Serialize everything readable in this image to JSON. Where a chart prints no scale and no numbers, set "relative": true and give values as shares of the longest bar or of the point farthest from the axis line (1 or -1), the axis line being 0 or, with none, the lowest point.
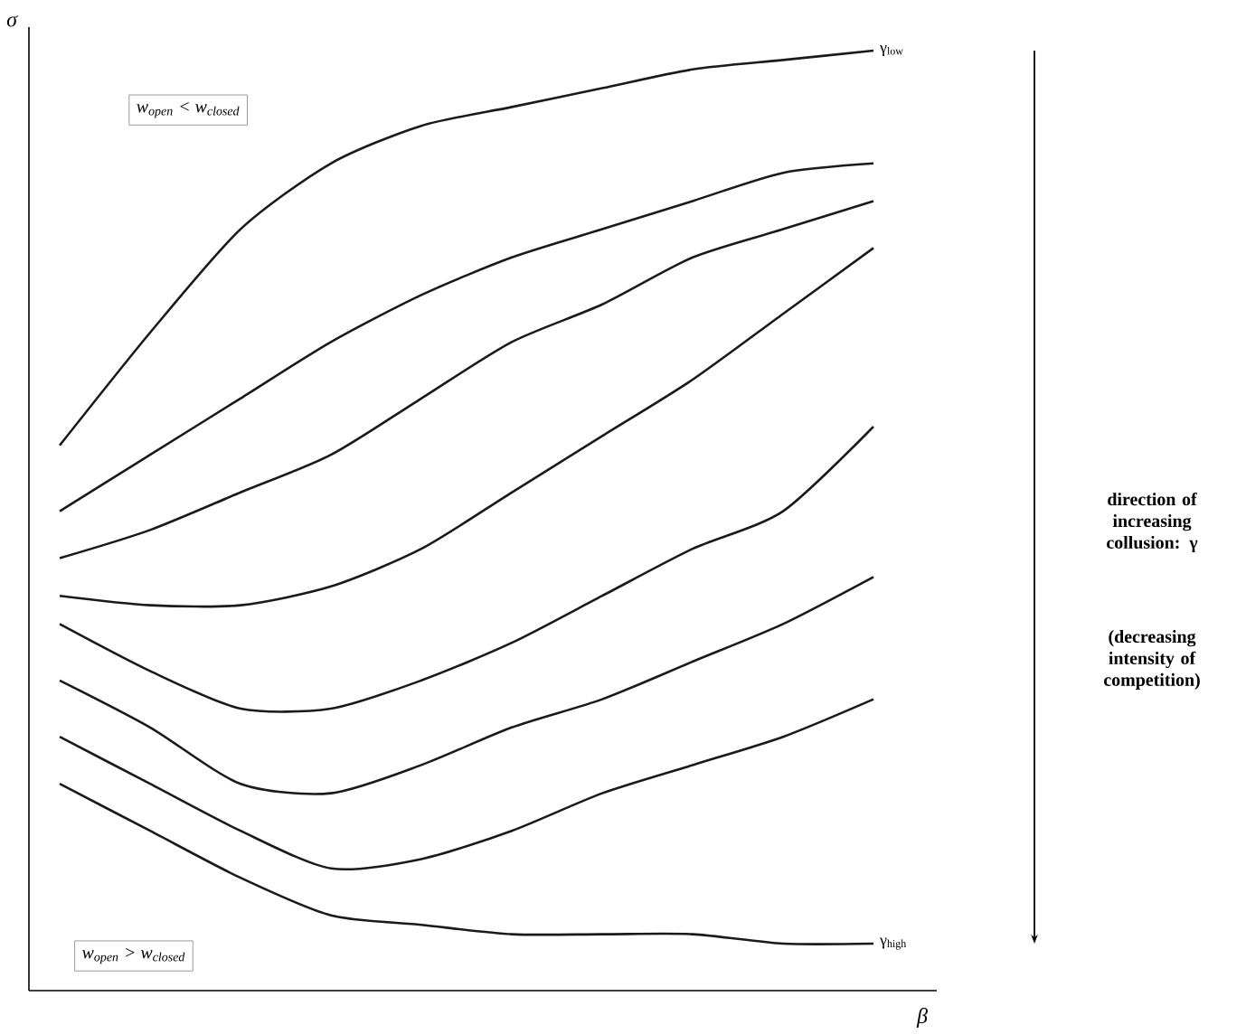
{
  "chart_data": {
    "type": "line",
    "relative": true,
    "xlabel": "β",
    "ylabel": "σ",
    "categories": [
      null,
      null,
      null,
      null,
      null,
      null,
      null,
      null,
      null,
      null
    ],
    "marker": "none",
    "line_style": "solid",
    "series": [
      {
        "name": "γ$_{low}$",
        "color": "#1a1a1a",
        "values": [
          0.58,
          0.7,
          0.81,
          0.88,
          0.92,
          0.94,
          0.96,
          0.98,
          0.99,
          1.0
        ]
      },
      {
        "color": "#1a1a1a",
        "values": [
          0.51,
          0.57,
          0.63,
          0.69,
          0.74,
          0.78,
          0.81,
          0.84,
          0.87,
          0.88
        ]
      },
      {
        "color": "#1a1a1a",
        "values": [
          0.46,
          0.49,
          0.53,
          0.57,
          0.63,
          0.69,
          0.73,
          0.78,
          0.81,
          0.84
        ]
      },
      {
        "color": "#1a1a1a",
        "values": [
          0.42,
          0.41,
          0.41,
          0.43,
          0.47,
          0.53,
          0.59,
          0.65,
          0.72,
          0.79
        ]
      },
      {
        "color": "#1a1a1a",
        "values": [
          0.39,
          0.34,
          0.3,
          0.3,
          0.33,
          0.37,
          0.42,
          0.47,
          0.51,
          0.6
        ]
      },
      {
        "color": "#1a1a1a",
        "values": [
          0.33,
          0.28,
          0.22,
          0.21,
          0.24,
          0.28,
          0.31,
          0.35,
          0.39,
          0.44
        ]
      },
      {
        "color": "#1a1a1a",
        "values": [
          0.27,
          0.22,
          0.17,
          0.13,
          0.14,
          0.17,
          0.21,
          0.24,
          0.27,
          0.31
        ]
      },
      {
        "name": "γ$_{high}$",
        "color": "#1a1a1a",
        "values": [
          0.22,
          0.17,
          0.12,
          0.08,
          0.07,
          0.06,
          0.06,
          0.06,
          0.05,
          0.05
        ]
      }
    ],
    "annotations": [
      "w$_{open}$ < w$_{closed}$",
      "w$_{open}$ > w$_{closed}$",
      "direction of increasing collusion: γ",
      "(decreasing intensity of competition)"
    ]
  }
}
